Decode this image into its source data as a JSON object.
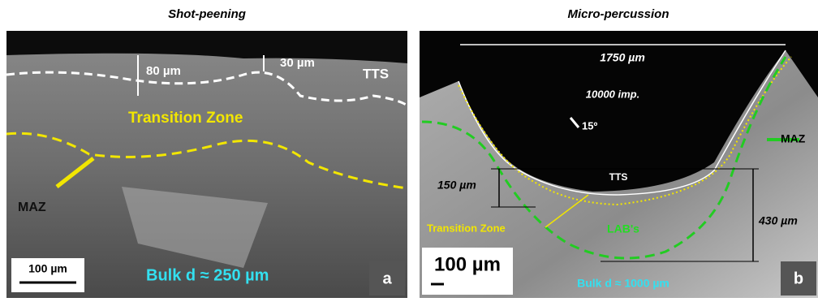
{
  "panels": [
    {
      "title": "Shot-peening",
      "depth_1": "80 µm",
      "depth_2": "30 µm",
      "zone_1": "TTS",
      "zone_2": "Transition Zone",
      "zone_3": "MAZ",
      "scale": "100 µm",
      "bulk": "Bulk d ≈ 250 µm",
      "letter": "a"
    },
    {
      "title": "Micro-percussion",
      "width": "1750 µm",
      "impacts": "10000 imp.",
      "angle": "15º",
      "zone_3": "MAZ",
      "zone_1": "TTS",
      "depth_1": "150 µm",
      "depth_2": "430 µm",
      "zone_2": "Transition Zone",
      "lab": "LAB's",
      "scale": "100 µm",
      "bulk": "Bulk d ≈ 1000 µm",
      "letter": "b"
    }
  ]
}
